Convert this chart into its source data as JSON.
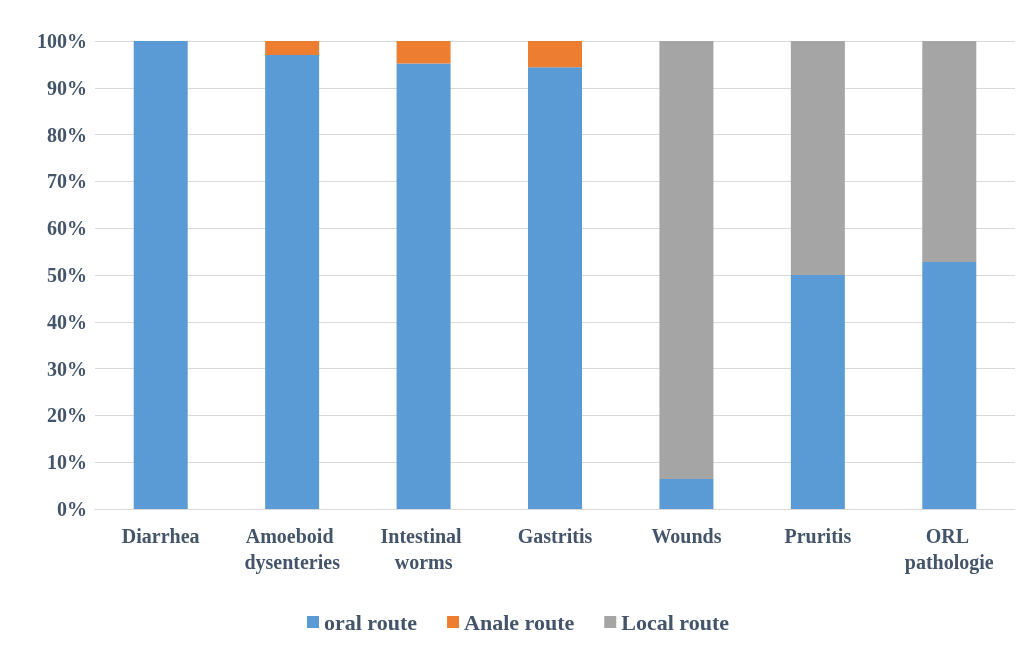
{
  "chart_data": {
    "type": "bar",
    "stacked": true,
    "categories": [
      "Diarrhea",
      "Amoeboid dysenteries",
      "Intestinal worms",
      "Gastritis",
      "Wounds",
      "Pruritis",
      "ORL pathologie"
    ],
    "series": [
      {
        "name": "oral route",
        "color": "#5b9bd5",
        "values": [
          100,
          97,
          95.2,
          94.4,
          6.4,
          50,
          52.8
        ]
      },
      {
        "name": "Anale route",
        "color": "#ed7d31",
        "values": [
          0,
          3,
          4.8,
          5.6,
          0,
          0,
          0
        ]
      },
      {
        "name": "Local route",
        "color": "#a5a5a5",
        "values": [
          0,
          0,
          0,
          0,
          93.6,
          50,
          47.2
        ]
      }
    ],
    "ylim": [
      0,
      100
    ],
    "yticks": [
      {
        "value": 0,
        "label": "0%"
      },
      {
        "value": 10,
        "label": "10%"
      },
      {
        "value": 20,
        "label": "20%"
      },
      {
        "value": 30,
        "label": "30%"
      },
      {
        "value": 40,
        "label": "40%"
      },
      {
        "value": 50,
        "label": "50%"
      },
      {
        "value": 60,
        "label": "60%"
      },
      {
        "value": 70,
        "label": "70%"
      },
      {
        "value": 80,
        "label": "80%"
      },
      {
        "value": 90,
        "label": "90%"
      },
      {
        "value": 100,
        "label": "100%"
      }
    ],
    "grid": "y",
    "legend": "bottom"
  }
}
